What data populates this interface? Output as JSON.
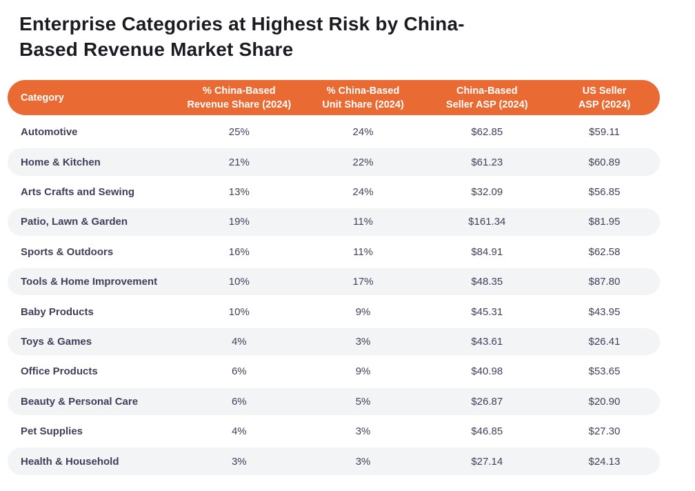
{
  "colors": {
    "header_bg": "#E96A32",
    "header_text": "#FFFFFF",
    "stripe_bg": "#F3F4F6",
    "body_text": "#403F5A",
    "title_text": "#1C1B22"
  },
  "chart_data": {
    "type": "table",
    "title": "Enterprise Categories at Highest Risk by China-Based Revenue Market Share",
    "title_lines": [
      "Enterprise Categories at Highest Risk by China-",
      "Based Revenue Market Share"
    ],
    "columns": [
      "Category",
      "% China-Based\nRevenue Share (2024)",
      "% China-Based\nUnit Share (2024)",
      "China-Based\nSeller ASP (2024)",
      "US Seller\nASP (2024)"
    ],
    "rows": [
      {
        "category": "Automotive",
        "revenue_share": "25%",
        "unit_share": "24%",
        "china_seller_asp": "$62.85",
        "us_seller_asp": "$59.11"
      },
      {
        "category": "Home & Kitchen",
        "revenue_share": "21%",
        "unit_share": "22%",
        "china_seller_asp": "$61.23",
        "us_seller_asp": "$60.89"
      },
      {
        "category": "Arts Crafts and Sewing",
        "revenue_share": "13%",
        "unit_share": "24%",
        "china_seller_asp": "$32.09",
        "us_seller_asp": "$56.85"
      },
      {
        "category": "Patio, Lawn & Garden",
        "revenue_share": "19%",
        "unit_share": "11%",
        "china_seller_asp": "$161.34",
        "us_seller_asp": "$81.95"
      },
      {
        "category": "Sports & Outdoors",
        "revenue_share": "16%",
        "unit_share": "11%",
        "china_seller_asp": "$84.91",
        "us_seller_asp": "$62.58"
      },
      {
        "category": "Tools & Home Improvement",
        "revenue_share": "10%",
        "unit_share": "17%",
        "china_seller_asp": "$48.35",
        "us_seller_asp": "$87.80"
      },
      {
        "category": "Baby Products",
        "revenue_share": "10%",
        "unit_share": "9%",
        "china_seller_asp": "$45.31",
        "us_seller_asp": "$43.95"
      },
      {
        "category": "Toys & Games",
        "revenue_share": "4%",
        "unit_share": "3%",
        "china_seller_asp": "$43.61",
        "us_seller_asp": "$26.41"
      },
      {
        "category": "Office Products",
        "revenue_share": "6%",
        "unit_share": "9%",
        "china_seller_asp": "$40.98",
        "us_seller_asp": "$53.65"
      },
      {
        "category": "Beauty & Personal Care",
        "revenue_share": "6%",
        "unit_share": "5%",
        "china_seller_asp": "$26.87",
        "us_seller_asp": "$20.90"
      },
      {
        "category": "Pet Supplies",
        "revenue_share": "4%",
        "unit_share": "3%",
        "china_seller_asp": "$46.85",
        "us_seller_asp": "$27.30"
      },
      {
        "category": "Health & Household",
        "revenue_share": "3%",
        "unit_share": "3%",
        "china_seller_asp": "$27.14",
        "us_seller_asp": "$24.13"
      }
    ]
  }
}
